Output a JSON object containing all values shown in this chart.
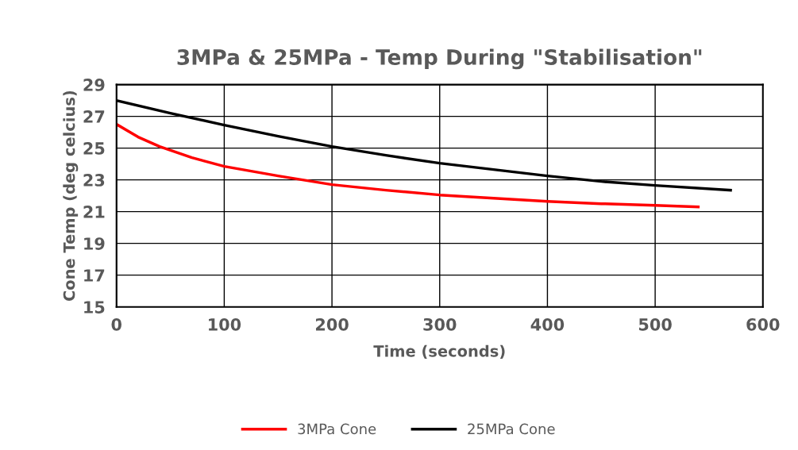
{
  "chart_data": {
    "type": "line",
    "title": "3MPa & 25MPa - Temp During \"Stabilisation\"",
    "xlabel": "Time (seconds)",
    "ylabel": "Cone Temp (deg celcius)",
    "series": [
      {
        "name": "3MPa Cone",
        "color": "#ff0000",
        "x": [
          0,
          20,
          40,
          70,
          100,
          150,
          200,
          250,
          300,
          350,
          400,
          450,
          500,
          540
        ],
        "values": [
          26.5,
          25.7,
          25.1,
          24.4,
          23.85,
          23.25,
          22.7,
          22.35,
          22.05,
          21.85,
          21.65,
          21.5,
          21.4,
          21.3
        ]
      },
      {
        "name": "25MPa Cone",
        "color": "#000000",
        "x": [
          0,
          50,
          100,
          150,
          200,
          250,
          300,
          350,
          400,
          450,
          500,
          570
        ],
        "values": [
          28.0,
          27.2,
          26.45,
          25.75,
          25.1,
          24.55,
          24.05,
          23.65,
          23.25,
          22.9,
          22.65,
          22.35
        ]
      }
    ],
    "xlim": [
      0,
      600
    ],
    "xticks": [
      0,
      100,
      200,
      300,
      400,
      500,
      600
    ],
    "ylim": [
      15,
      29
    ],
    "yticks": [
      15,
      17,
      19,
      21,
      23,
      25,
      27,
      29
    ],
    "grid": true,
    "legend": "bottom",
    "marker": "none",
    "line_style": "solid"
  }
}
